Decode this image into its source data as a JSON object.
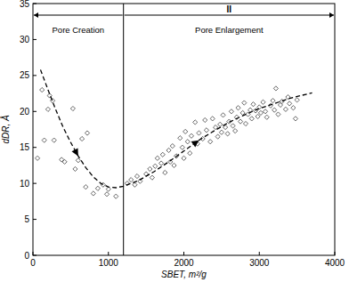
{
  "chart_data": {
    "type": "scatter",
    "x_label": "SBET, m²/g",
    "y_label": "dDR, Å",
    "xlim": [
      0,
      4000
    ],
    "xticks": [
      0,
      1000,
      2000,
      3000,
      4000
    ],
    "ylim": [
      0,
      35
    ],
    "yticks": [
      0,
      5,
      10,
      15,
      20,
      25,
      30,
      35
    ],
    "grid": false,
    "series": [
      {
        "type": "scatter",
        "marker": "diamond",
        "color": "#555555",
        "x": [
          60,
          120,
          150,
          200,
          220,
          260,
          280,
          380,
          420,
          530,
          560,
          600,
          650,
          700,
          720,
          800,
          860,
          930,
          980,
          1000,
          1100,
          1250,
          1300,
          1350,
          1380,
          1420,
          1500,
          1550,
          1580,
          1620,
          1650,
          1700,
          1720,
          1750,
          1800,
          1820,
          1850,
          1870,
          1900,
          1950,
          1980,
          2000,
          2020,
          2050,
          2080,
          2100,
          2150,
          2180,
          2200,
          2250,
          2280,
          2300,
          2350,
          2380,
          2420,
          2450,
          2480,
          2500,
          2520,
          2550,
          2580,
          2600,
          2630,
          2650,
          2680,
          2700,
          2720,
          2750,
          2780,
          2800,
          2820,
          2850,
          2880,
          2900,
          2920,
          2950,
          2980,
          3000,
          3020,
          3050,
          3080,
          3100,
          3150,
          3180,
          3200,
          3220,
          3250,
          3280,
          3300,
          3350,
          3380,
          3400,
          3450,
          3480,
          3500
        ],
        "values": [
          13.5,
          23,
          16,
          20.3,
          22.2,
          21.5,
          16,
          13.3,
          13,
          20.4,
          12,
          13.2,
          16.2,
          9.5,
          17,
          8.6,
          9.3,
          9.8,
          8.5,
          9.2,
          8.2,
          10,
          10.5,
          9.8,
          11,
          10.3,
          11.3,
          12,
          10.8,
          12.4,
          13.5,
          12.8,
          14,
          11.5,
          14.6,
          13,
          15.2,
          12.5,
          13.8,
          16.3,
          15,
          13.5,
          17.2,
          15.8,
          14.2,
          16.6,
          18.5,
          15.5,
          17,
          16.2,
          18.8,
          17.4,
          15.8,
          19,
          17.8,
          16.5,
          18.2,
          17.1,
          19.5,
          17.8,
          16.9,
          18.6,
          20,
          18,
          17.3,
          19.2,
          20.5,
          18.6,
          19.8,
          21.2,
          18.3,
          19.6,
          20.2,
          19,
          21,
          20.1,
          19.3,
          20.6,
          19.8,
          21.3,
          20,
          19.2,
          20.8,
          21.5,
          20.2,
          23.2,
          19.6,
          20.9,
          21.4,
          20.3,
          22,
          21.1,
          20.5,
          19,
          21.6
        ]
      },
      {
        "type": "line",
        "line_style": "dashed",
        "color": "#000000",
        "x": [
          100,
          200,
          300,
          400,
          500,
          600,
          700,
          800,
          900,
          1000,
          1100,
          1200,
          1400,
          1600,
          1800,
          2000,
          2200,
          2400,
          2600,
          2800,
          3000,
          3200,
          3400,
          3700
        ],
        "values": [
          25.8,
          23,
          20.3,
          17.8,
          15.7,
          13.8,
          12.2,
          10.9,
          10,
          9.5,
          9.4,
          9.6,
          10.4,
          11.6,
          13,
          14.5,
          16,
          17.3,
          18.5,
          19.5,
          20.4,
          21.1,
          21.8,
          22.6
        ]
      }
    ],
    "annotations": {
      "divider": 1200,
      "regions": [
        {
          "text": "Pore Creation",
          "from": 0,
          "to": 1200
        },
        {
          "text": "Pore Enlargement",
          "from": 1200,
          "to": 4000,
          "heading": "II"
        }
      ]
    }
  }
}
